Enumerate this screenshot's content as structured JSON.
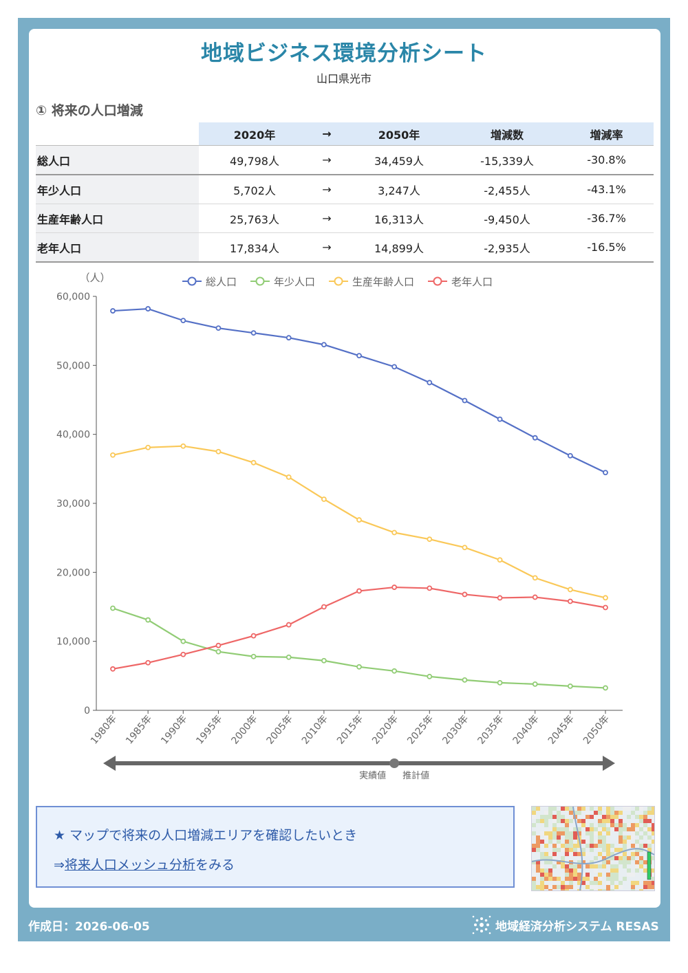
{
  "header": {
    "title": "地域ビジネス環境分析シート",
    "subtitle": "山口県光市"
  },
  "section": {
    "title": "① 将来の人口増減"
  },
  "table": {
    "headers": [
      "",
      "2020年",
      "→",
      "2050年",
      "増減数",
      "増減率"
    ],
    "rows": [
      {
        "label": "総人口",
        "v2020": "49,798人",
        "arrow": "→",
        "v2050": "34,459人",
        "diff": "-15,339人",
        "rate": "-30.8%"
      },
      {
        "label": "年少人口",
        "v2020": "5,702人",
        "arrow": "→",
        "v2050": "3,247人",
        "diff": "-2,455人",
        "rate": "-43.1%"
      },
      {
        "label": "生産年齢人口",
        "v2020": "25,763人",
        "arrow": "→",
        "v2050": "16,313人",
        "diff": "-9,450人",
        "rate": "-36.7%"
      },
      {
        "label": "老年人口",
        "v2020": "17,834人",
        "arrow": "→",
        "v2050": "14,899人",
        "diff": "-2,935人",
        "rate": "-16.5%"
      }
    ]
  },
  "chart_data": {
    "type": "line",
    "unit_label": "（人）",
    "categories": [
      "1980年",
      "1985年",
      "1990年",
      "1995年",
      "2000年",
      "2005年",
      "2010年",
      "2015年",
      "2020年",
      "2025年",
      "2030年",
      "2035年",
      "2040年",
      "2045年",
      "2050年"
    ],
    "ylim": [
      0,
      60000
    ],
    "yticks": [
      0,
      10000,
      20000,
      30000,
      40000,
      50000,
      60000
    ],
    "ytick_labels": [
      "0",
      "10,000",
      "20,000",
      "30,000",
      "40,000",
      "50,000",
      "60,000"
    ],
    "legend_position": "top",
    "series": [
      {
        "name": "総人口",
        "color": "#5470c6",
        "values": [
          57900,
          58200,
          56500,
          55400,
          54700,
          54000,
          53000,
          51400,
          49798,
          47500,
          44900,
          42200,
          39500,
          36900,
          34459
        ]
      },
      {
        "name": "年少人口",
        "color": "#91cc75",
        "values": [
          14800,
          13100,
          10000,
          8500,
          7800,
          7700,
          7200,
          6300,
          5702,
          4900,
          4400,
          4000,
          3800,
          3500,
          3247
        ]
      },
      {
        "name": "生産年齢人口",
        "color": "#fac858",
        "values": [
          37000,
          38100,
          38300,
          37500,
          35900,
          33800,
          30600,
          27600,
          25763,
          24800,
          23600,
          21800,
          19200,
          17500,
          16313
        ]
      },
      {
        "name": "老年人口",
        "color": "#ee6666",
        "values": [
          6000,
          6900,
          8100,
          9400,
          10800,
          12400,
          15000,
          17300,
          17834,
          17700,
          16800,
          16300,
          16400,
          15800,
          14899
        ]
      }
    ],
    "period_labels": {
      "actual": "実績値",
      "estimate": "推計値"
    }
  },
  "info": {
    "line1": "★ マップで将来の人口増減エリアを確認したいとき",
    "prefix": "⇒",
    "link_text": "将来人口メッシュ分析",
    "suffix": "をみる"
  },
  "footer": {
    "date": "作成日：2026-06-05",
    "brand": "地域経済分析システム RESAS"
  }
}
